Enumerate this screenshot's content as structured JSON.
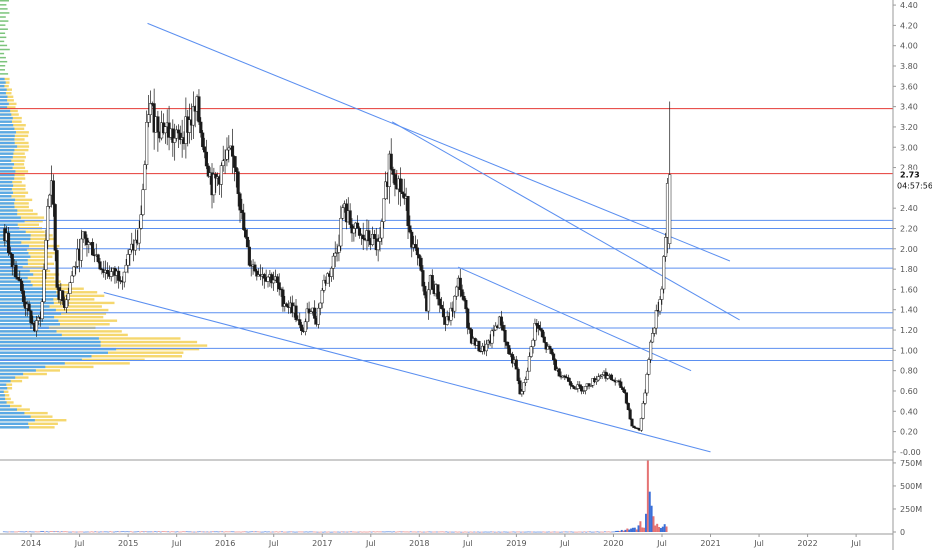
{
  "chart_data": {
    "type": "candlestick",
    "price_axis": {
      "ticks": [
        "4.40",
        "4.20",
        "4.00",
        "3.80",
        "3.60",
        "3.40",
        "3.20",
        "3.00",
        "2.80",
        "2.40",
        "2.20",
        "2.00",
        "1.80",
        "1.60",
        "1.40",
        "1.20",
        "1.00",
        "0.80",
        "0.60",
        "0.40",
        "0.20",
        "-0.00"
      ],
      "last_price_label": "2.73",
      "last_price": 2.73,
      "countdown_label": "04:57:56",
      "ylim": [
        -0.06,
        4.45
      ],
      "grid": false
    },
    "volume_axis": {
      "ticks": [
        "750M",
        "500M",
        "250M",
        "0"
      ],
      "tick_values": [
        750,
        500,
        250,
        0
      ],
      "ylim": [
        0,
        760
      ]
    },
    "x_axis": {
      "labels": [
        "2014",
        "Jul",
        "2015",
        "Jul",
        "2016",
        "Jul",
        "2017",
        "Jul",
        "2018",
        "Jul",
        "2019",
        "Jul",
        "2020",
        "Jul",
        "2021",
        "Jul",
        "2022",
        "Jul"
      ],
      "label_dates": [
        2014.0,
        2014.5,
        2015.0,
        2015.5,
        2016.0,
        2016.5,
        2017.0,
        2017.5,
        2018.0,
        2018.5,
        2019.0,
        2019.5,
        2020.0,
        2020.5,
        2021.0,
        2021.5,
        2022.0,
        2022.5
      ],
      "xlim": [
        2013.68,
        2022.88
      ]
    },
    "horizontal_levels": [
      {
        "price": 3.38,
        "color": "#e53935"
      },
      {
        "price": 2.74,
        "color": "#e53935"
      },
      {
        "price": 2.28,
        "color": "#5b8ff0"
      },
      {
        "price": 2.2,
        "color": "#5b8ff0"
      },
      {
        "price": 2.0,
        "color": "#5b8ff0"
      },
      {
        "price": 1.81,
        "color": "#5b8ff0"
      },
      {
        "price": 1.37,
        "color": "#5b8ff0"
      },
      {
        "price": 1.22,
        "color": "#5b8ff0"
      },
      {
        "price": 1.02,
        "color": "#5b8ff0"
      },
      {
        "price": 0.9,
        "color": "#5b8ff0"
      }
    ],
    "trendlines": [
      {
        "from": [
          2015.2,
          4.22
        ],
        "to": [
          2021.2,
          1.88
        ]
      },
      {
        "from": [
          2017.72,
          3.25
        ],
        "to": [
          2021.3,
          1.3
        ]
      },
      {
        "from": [
          2018.4,
          1.82
        ],
        "to": [
          2020.8,
          0.8
        ]
      },
      {
        "from": [
          2014.75,
          1.57
        ],
        "to": [
          2021.0,
          0.0
        ]
      }
    ],
    "price_path": [
      [
        2013.72,
        2.2
      ],
      [
        2013.85,
        1.8
      ],
      [
        2013.95,
        1.45
      ],
      [
        2014.05,
        1.2
      ],
      [
        2014.12,
        1.4
      ],
      [
        2014.18,
        2.4
      ],
      [
        2014.22,
        2.7
      ],
      [
        2014.28,
        1.6
      ],
      [
        2014.35,
        1.45
      ],
      [
        2014.45,
        1.8
      ],
      [
        2014.55,
        2.1
      ],
      [
        2014.65,
        2.0
      ],
      [
        2014.75,
        1.8
      ],
      [
        2014.85,
        1.75
      ],
      [
        2014.95,
        1.75
      ],
      [
        2015.05,
        2.0
      ],
      [
        2015.12,
        2.1
      ],
      [
        2015.18,
        2.8
      ],
      [
        2015.22,
        3.4
      ],
      [
        2015.3,
        3.25
      ],
      [
        2015.4,
        3.2
      ],
      [
        2015.5,
        3.05
      ],
      [
        2015.6,
        3.2
      ],
      [
        2015.72,
        3.35
      ],
      [
        2015.8,
        3.0
      ],
      [
        2015.88,
        2.6
      ],
      [
        2015.98,
        2.8
      ],
      [
        2016.05,
        2.9
      ],
      [
        2016.12,
        2.85
      ],
      [
        2016.18,
        2.3
      ],
      [
        2016.25,
        1.9
      ],
      [
        2016.32,
        1.8
      ],
      [
        2016.42,
        1.75
      ],
      [
        2016.52,
        1.7
      ],
      [
        2016.6,
        1.5
      ],
      [
        2016.72,
        1.4
      ],
      [
        2016.8,
        1.15
      ],
      [
        2016.88,
        1.45
      ],
      [
        2016.95,
        1.3
      ],
      [
        2017.02,
        1.65
      ],
      [
        2017.1,
        1.8
      ],
      [
        2017.18,
        2.1
      ],
      [
        2017.22,
        2.4
      ],
      [
        2017.3,
        2.25
      ],
      [
        2017.4,
        2.1
      ],
      [
        2017.5,
        2.1
      ],
      [
        2017.6,
        2.0
      ],
      [
        2017.7,
        2.9
      ],
      [
        2017.78,
        2.7
      ],
      [
        2017.88,
        2.4
      ],
      [
        2017.95,
        2.0
      ],
      [
        2018.02,
        1.8
      ],
      [
        2018.08,
        1.4
      ],
      [
        2018.12,
        1.7
      ],
      [
        2018.2,
        1.55
      ],
      [
        2018.28,
        1.25
      ],
      [
        2018.35,
        1.4
      ],
      [
        2018.42,
        1.7
      ],
      [
        2018.48,
        1.4
      ],
      [
        2018.55,
        1.1
      ],
      [
        2018.65,
        1.0
      ],
      [
        2018.72,
        1.05
      ],
      [
        2018.8,
        1.25
      ],
      [
        2018.85,
        1.3
      ],
      [
        2018.92,
        1.0
      ],
      [
        2019.0,
        0.85
      ],
      [
        2019.05,
        0.55
      ],
      [
        2019.1,
        0.7
      ],
      [
        2019.15,
        0.95
      ],
      [
        2019.2,
        1.25
      ],
      [
        2019.25,
        1.2
      ],
      [
        2019.3,
        1.05
      ],
      [
        2019.38,
        0.95
      ],
      [
        2019.42,
        0.8
      ],
      [
        2019.5,
        0.75
      ],
      [
        2019.6,
        0.65
      ],
      [
        2019.7,
        0.62
      ],
      [
        2019.8,
        0.7
      ],
      [
        2019.9,
        0.78
      ],
      [
        2019.98,
        0.72
      ],
      [
        2020.05,
        0.68
      ],
      [
        2020.12,
        0.6
      ],
      [
        2020.2,
        0.25
      ],
      [
        2020.28,
        0.22
      ],
      [
        2020.33,
        0.55
      ],
      [
        2020.38,
        1.0
      ],
      [
        2020.44,
        1.3
      ],
      [
        2020.5,
        1.55
      ],
      [
        2020.55,
        2.2
      ],
      [
        2020.57,
        2.73
      ]
    ],
    "volume_path": [
      [
        2013.72,
        4
      ],
      [
        2014.1,
        6
      ],
      [
        2014.5,
        4
      ],
      [
        2015.0,
        5
      ],
      [
        2015.5,
        5
      ],
      [
        2016.0,
        4
      ],
      [
        2016.5,
        4
      ],
      [
        2017.0,
        3
      ],
      [
        2017.5,
        4
      ],
      [
        2018.0,
        4
      ],
      [
        2018.5,
        3
      ],
      [
        2019.0,
        3
      ],
      [
        2019.5,
        3
      ],
      [
        2020.0,
        4
      ],
      [
        2020.25,
        45
      ],
      [
        2020.28,
        120
      ],
      [
        2020.32,
        30
      ],
      [
        2020.36,
        700
      ],
      [
        2020.38,
        300
      ],
      [
        2020.42,
        90
      ],
      [
        2020.46,
        60
      ],
      [
        2020.5,
        40
      ],
      [
        2020.55,
        80
      ]
    ],
    "colors": {
      "up_candle": "#ffffff",
      "down_candle": "#1a1a1a",
      "level_red": "#e53935",
      "level_blue": "#5b8ff0",
      "trendline": "#5b8ff0",
      "profile_yellow": "#f5d76e",
      "profile_blue": "#5aa9e6",
      "volume_blue": "#3a6fd8",
      "volume_red": "#e57373"
    }
  }
}
